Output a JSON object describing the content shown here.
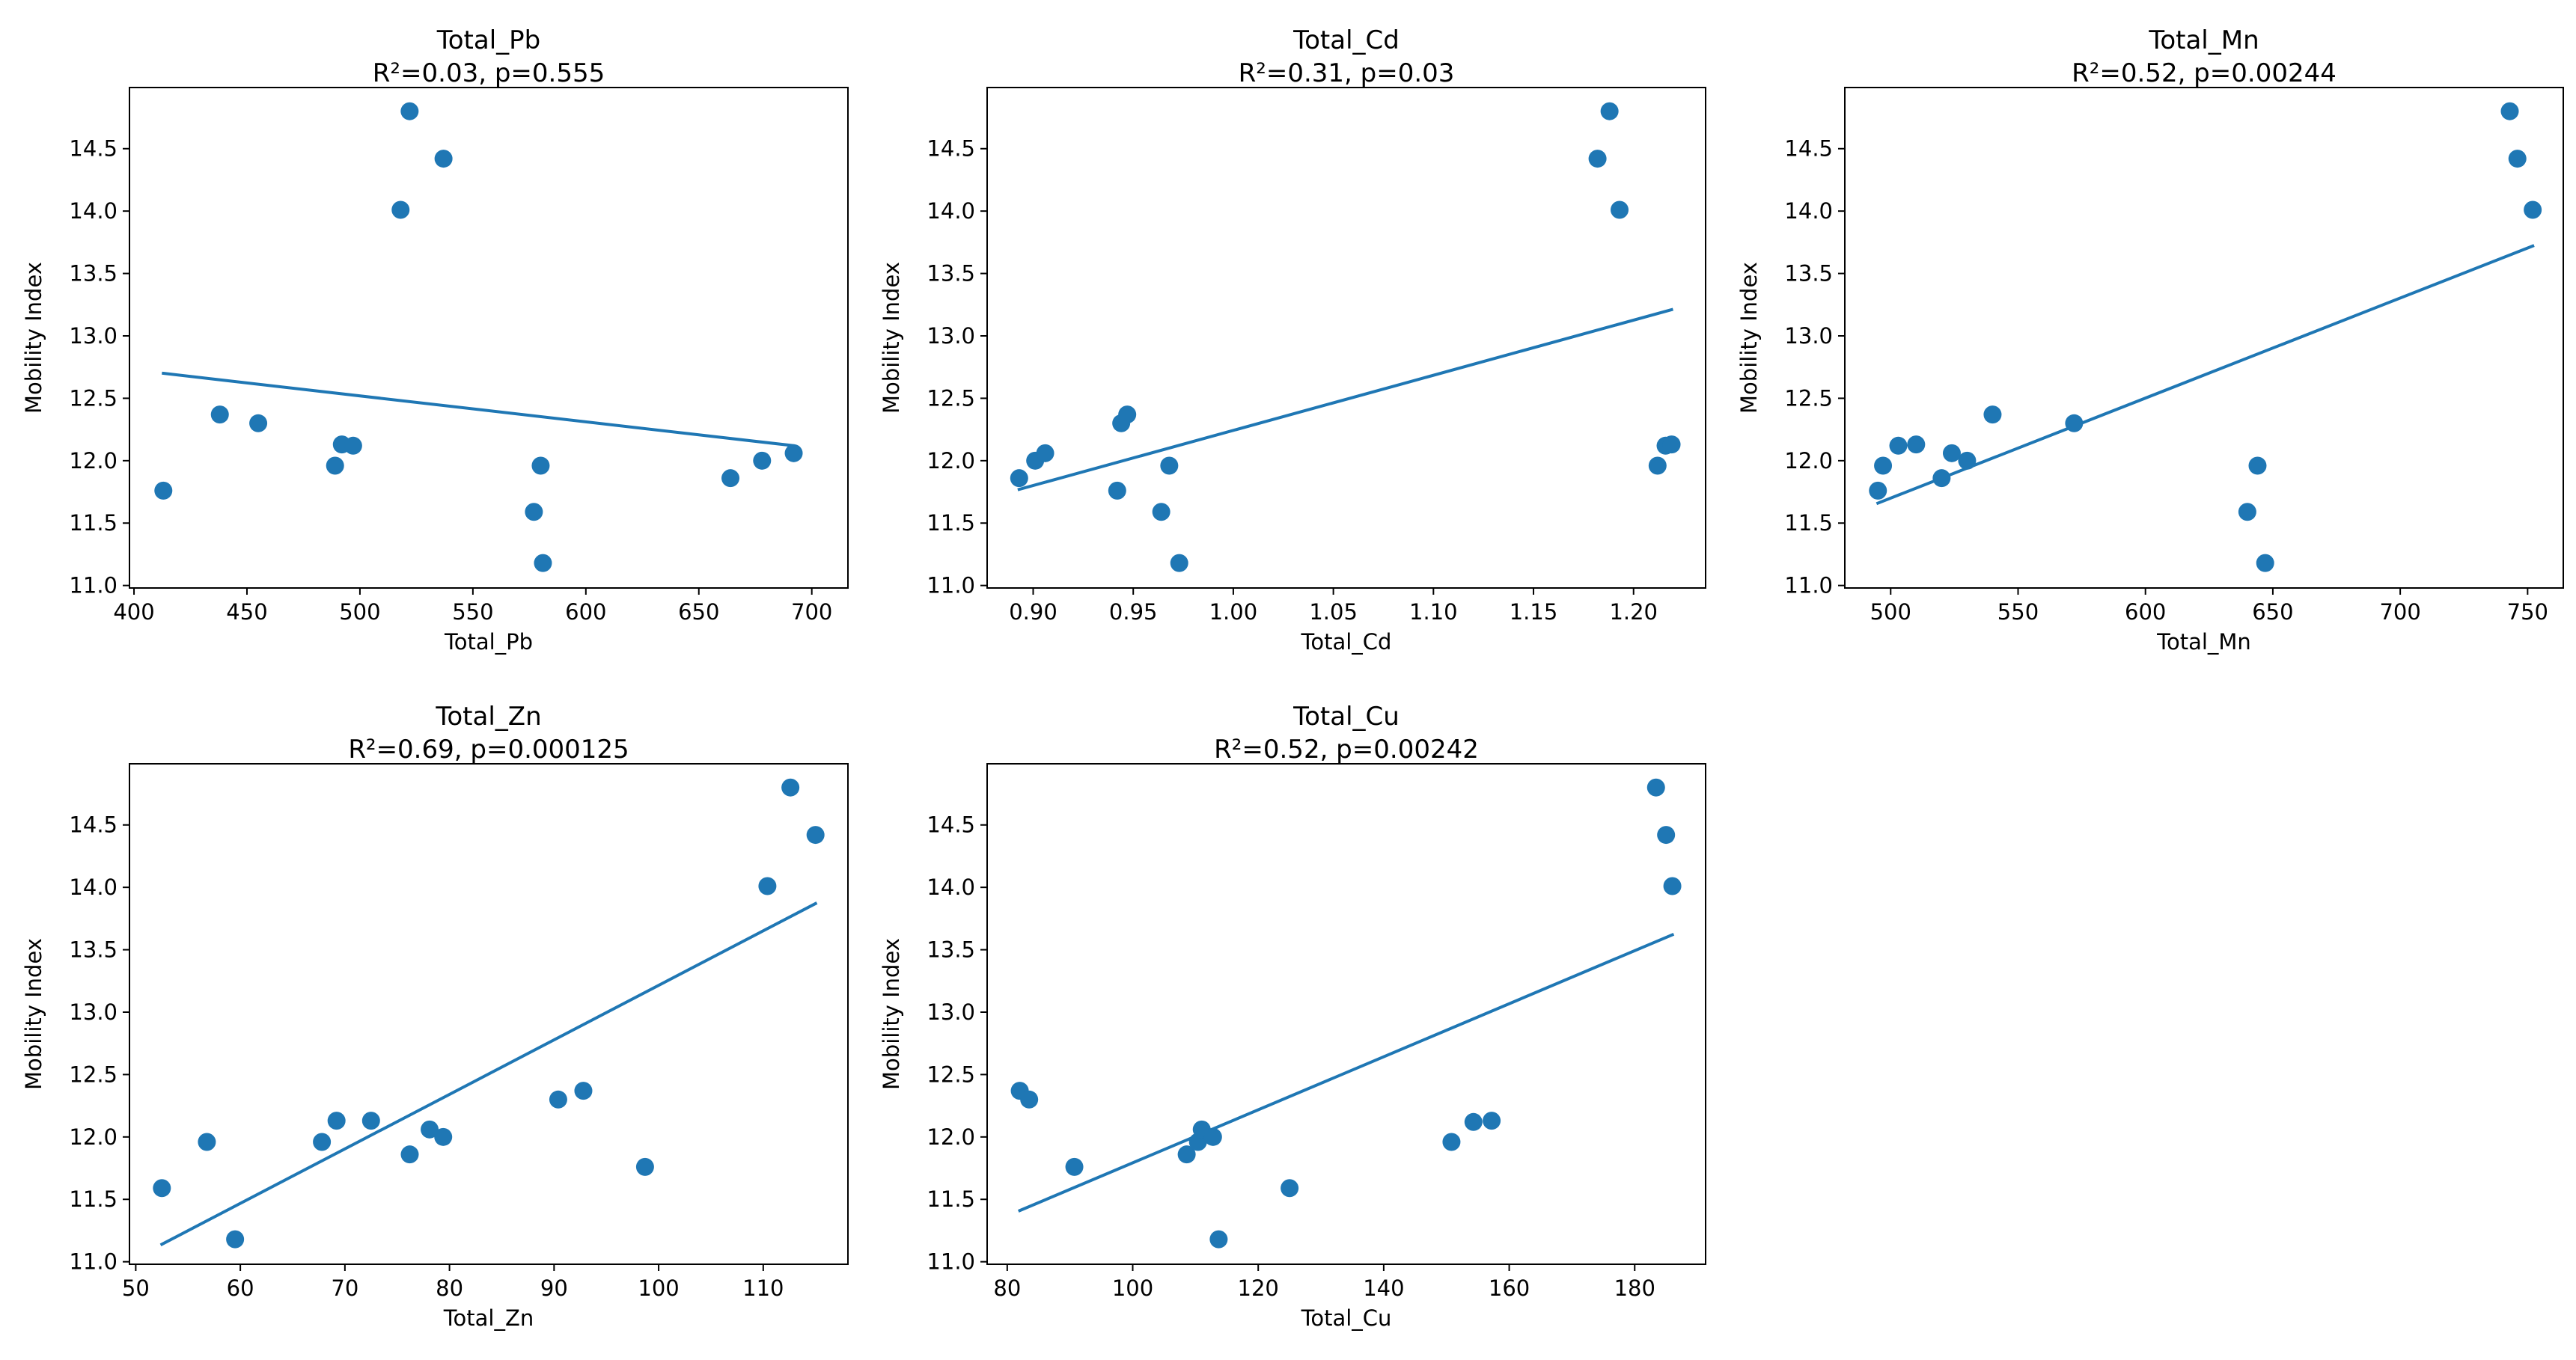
{
  "colors": {
    "series": "#1f77b4",
    "axis": "#000000",
    "background": "#ffffff"
  },
  "chart_data": [
    {
      "type": "scatter",
      "title": "Total_Pb",
      "subtitle": "R²=0.03, p=0.555",
      "xlabel": "Total_Pb",
      "ylabel": "Mobility Index",
      "xlim": [
        398,
        716
      ],
      "ylim": [
        10.98,
        14.99
      ],
      "xticks": [
        400,
        450,
        500,
        550,
        600,
        650,
        700
      ],
      "xtick_labels": [
        "400",
        "450",
        "500",
        "550",
        "600",
        "650",
        "700"
      ],
      "yticks": [
        11.0,
        11.5,
        12.0,
        12.5,
        13.0,
        13.5,
        14.0,
        14.5
      ],
      "ytick_labels": [
        "11.0",
        "11.5",
        "12.0",
        "12.5",
        "13.0",
        "13.5",
        "14.0",
        "14.5"
      ],
      "grid": false,
      "points": [
        {
          "x": 413,
          "y": 11.76
        },
        {
          "x": 438,
          "y": 12.37
        },
        {
          "x": 455,
          "y": 12.3
        },
        {
          "x": 489,
          "y": 11.96
        },
        {
          "x": 492,
          "y": 12.13
        },
        {
          "x": 497,
          "y": 12.12
        },
        {
          "x": 518,
          "y": 14.01
        },
        {
          "x": 522,
          "y": 14.8
        },
        {
          "x": 537,
          "y": 14.42
        },
        {
          "x": 577,
          "y": 11.59
        },
        {
          "x": 580,
          "y": 11.96
        },
        {
          "x": 581,
          "y": 11.18
        },
        {
          "x": 664,
          "y": 11.86
        },
        {
          "x": 678,
          "y": 12.0
        },
        {
          "x": 692,
          "y": 12.06
        }
      ],
      "fit_line": [
        {
          "x": 413,
          "y": 12.7
        },
        {
          "x": 692,
          "y": 12.12
        }
      ]
    },
    {
      "type": "scatter",
      "title": "Total_Cd",
      "subtitle": "R²=0.31, p=0.03",
      "xlabel": "Total_Cd",
      "ylabel": "Mobility Index",
      "xlim": [
        0.877,
        1.236
      ],
      "ylim": [
        10.98,
        14.99
      ],
      "xticks": [
        0.9,
        0.95,
        1.0,
        1.05,
        1.1,
        1.15,
        1.2
      ],
      "xtick_labels": [
        "0.90",
        "0.95",
        "1.00",
        "1.05",
        "1.10",
        "1.15",
        "1.20"
      ],
      "yticks": [
        11.0,
        11.5,
        12.0,
        12.5,
        13.0,
        13.5,
        14.0,
        14.5
      ],
      "ytick_labels": [
        "11.0",
        "11.5",
        "12.0",
        "12.5",
        "13.0",
        "13.5",
        "14.0",
        "14.5"
      ],
      "grid": false,
      "points": [
        {
          "x": 0.893,
          "y": 11.86
        },
        {
          "x": 0.901,
          "y": 12.0
        },
        {
          "x": 0.906,
          "y": 12.06
        },
        {
          "x": 0.942,
          "y": 11.76
        },
        {
          "x": 0.944,
          "y": 12.3
        },
        {
          "x": 0.947,
          "y": 12.37
        },
        {
          "x": 0.964,
          "y": 11.59
        },
        {
          "x": 0.968,
          "y": 11.96
        },
        {
          "x": 0.973,
          "y": 11.18
        },
        {
          "x": 1.182,
          "y": 14.42
        },
        {
          "x": 1.188,
          "y": 14.8
        },
        {
          "x": 1.193,
          "y": 14.01
        },
        {
          "x": 1.212,
          "y": 11.96
        },
        {
          "x": 1.216,
          "y": 12.12
        },
        {
          "x": 1.219,
          "y": 12.13
        }
      ],
      "fit_line": [
        {
          "x": 0.893,
          "y": 11.77
        },
        {
          "x": 1.219,
          "y": 13.21
        }
      ]
    },
    {
      "type": "scatter",
      "title": "Total_Mn",
      "subtitle": "R²=0.52, p=0.00244",
      "xlabel": "Total_Mn",
      "ylabel": "Mobility Index",
      "xlim": [
        482,
        764
      ],
      "ylim": [
        10.98,
        14.99
      ],
      "xticks": [
        500,
        550,
        600,
        650,
        700,
        750
      ],
      "xtick_labels": [
        "500",
        "550",
        "600",
        "650",
        "700",
        "750"
      ],
      "yticks": [
        11.0,
        11.5,
        12.0,
        12.5,
        13.0,
        13.5,
        14.0,
        14.5
      ],
      "ytick_labels": [
        "11.0",
        "11.5",
        "12.0",
        "12.5",
        "13.0",
        "13.5",
        "14.0",
        "14.5"
      ],
      "grid": false,
      "points": [
        {
          "x": 495,
          "y": 11.76
        },
        {
          "x": 497,
          "y": 11.96
        },
        {
          "x": 503,
          "y": 12.12
        },
        {
          "x": 510,
          "y": 12.13
        },
        {
          "x": 520,
          "y": 11.86
        },
        {
          "x": 524,
          "y": 12.06
        },
        {
          "x": 530,
          "y": 12.0
        },
        {
          "x": 540,
          "y": 12.37
        },
        {
          "x": 572,
          "y": 12.3
        },
        {
          "x": 640,
          "y": 11.59
        },
        {
          "x": 644,
          "y": 11.96
        },
        {
          "x": 647,
          "y": 11.18
        },
        {
          "x": 743,
          "y": 14.8
        },
        {
          "x": 746,
          "y": 14.42
        },
        {
          "x": 752,
          "y": 14.01
        }
      ],
      "fit_line": [
        {
          "x": 495,
          "y": 11.66
        },
        {
          "x": 752,
          "y": 13.72
        }
      ]
    },
    {
      "type": "scatter",
      "title": "Total_Zn",
      "subtitle": "R²=0.69, p=0.000125",
      "xlabel": "Total_Zn",
      "ylabel": "Mobility Index",
      "xlim": [
        49.4,
        118.1
      ],
      "ylim": [
        10.98,
        14.99
      ],
      "xticks": [
        50,
        60,
        70,
        80,
        90,
        100,
        110
      ],
      "xtick_labels": [
        "50",
        "60",
        "70",
        "80",
        "90",
        "100",
        "110"
      ],
      "yticks": [
        11.0,
        11.5,
        12.0,
        12.5,
        13.0,
        13.5,
        14.0,
        14.5
      ],
      "ytick_labels": [
        "11.0",
        "11.5",
        "12.0",
        "12.5",
        "13.0",
        "13.5",
        "14.0",
        "14.5"
      ],
      "grid": false,
      "points": [
        {
          "x": 52.5,
          "y": 11.59
        },
        {
          "x": 56.8,
          "y": 11.96
        },
        {
          "x": 59.5,
          "y": 11.18
        },
        {
          "x": 67.8,
          "y": 11.96
        },
        {
          "x": 69.2,
          "y": 12.13
        },
        {
          "x": 72.5,
          "y": 12.13
        },
        {
          "x": 76.2,
          "y": 11.86
        },
        {
          "x": 78.1,
          "y": 12.06
        },
        {
          "x": 79.4,
          "y": 12.0
        },
        {
          "x": 90.4,
          "y": 12.3
        },
        {
          "x": 92.8,
          "y": 12.37
        },
        {
          "x": 98.7,
          "y": 11.76
        },
        {
          "x": 110.4,
          "y": 14.01
        },
        {
          "x": 112.6,
          "y": 14.8
        },
        {
          "x": 115.0,
          "y": 14.42
        }
      ],
      "fit_line": [
        {
          "x": 52.5,
          "y": 11.14
        },
        {
          "x": 115.0,
          "y": 13.87
        }
      ]
    },
    {
      "type": "scatter",
      "title": "Total_Cu",
      "subtitle": "R²=0.52, p=0.00242",
      "xlabel": "Total_Cu",
      "ylabel": "Mobility Index",
      "xlim": [
        76.8,
        191.3
      ],
      "ylim": [
        10.98,
        14.99
      ],
      "xticks": [
        80,
        100,
        120,
        140,
        160,
        180
      ],
      "xtick_labels": [
        "80",
        "100",
        "120",
        "140",
        "160",
        "180"
      ],
      "yticks": [
        11.0,
        11.5,
        12.0,
        12.5,
        13.0,
        13.5,
        14.0,
        14.5
      ],
      "ytick_labels": [
        "11.0",
        "11.5",
        "12.0",
        "12.5",
        "13.0",
        "13.5",
        "14.0",
        "14.5"
      ],
      "grid": false,
      "points": [
        {
          "x": 82.0,
          "y": 12.37
        },
        {
          "x": 83.5,
          "y": 12.3
        },
        {
          "x": 90.7,
          "y": 11.76
        },
        {
          "x": 108.6,
          "y": 11.86
        },
        {
          "x": 110.4,
          "y": 11.96
        },
        {
          "x": 111.0,
          "y": 12.06
        },
        {
          "x": 112.8,
          "y": 12.0
        },
        {
          "x": 113.7,
          "y": 11.18
        },
        {
          "x": 125.0,
          "y": 11.59
        },
        {
          "x": 150.8,
          "y": 11.96
        },
        {
          "x": 154.3,
          "y": 12.12
        },
        {
          "x": 157.2,
          "y": 12.13
        },
        {
          "x": 183.4,
          "y": 14.8
        },
        {
          "x": 185.0,
          "y": 14.42
        },
        {
          "x": 186.0,
          "y": 14.01
        }
      ],
      "fit_line": [
        {
          "x": 82.0,
          "y": 11.41
        },
        {
          "x": 186.0,
          "y": 13.62
        }
      ]
    }
  ]
}
